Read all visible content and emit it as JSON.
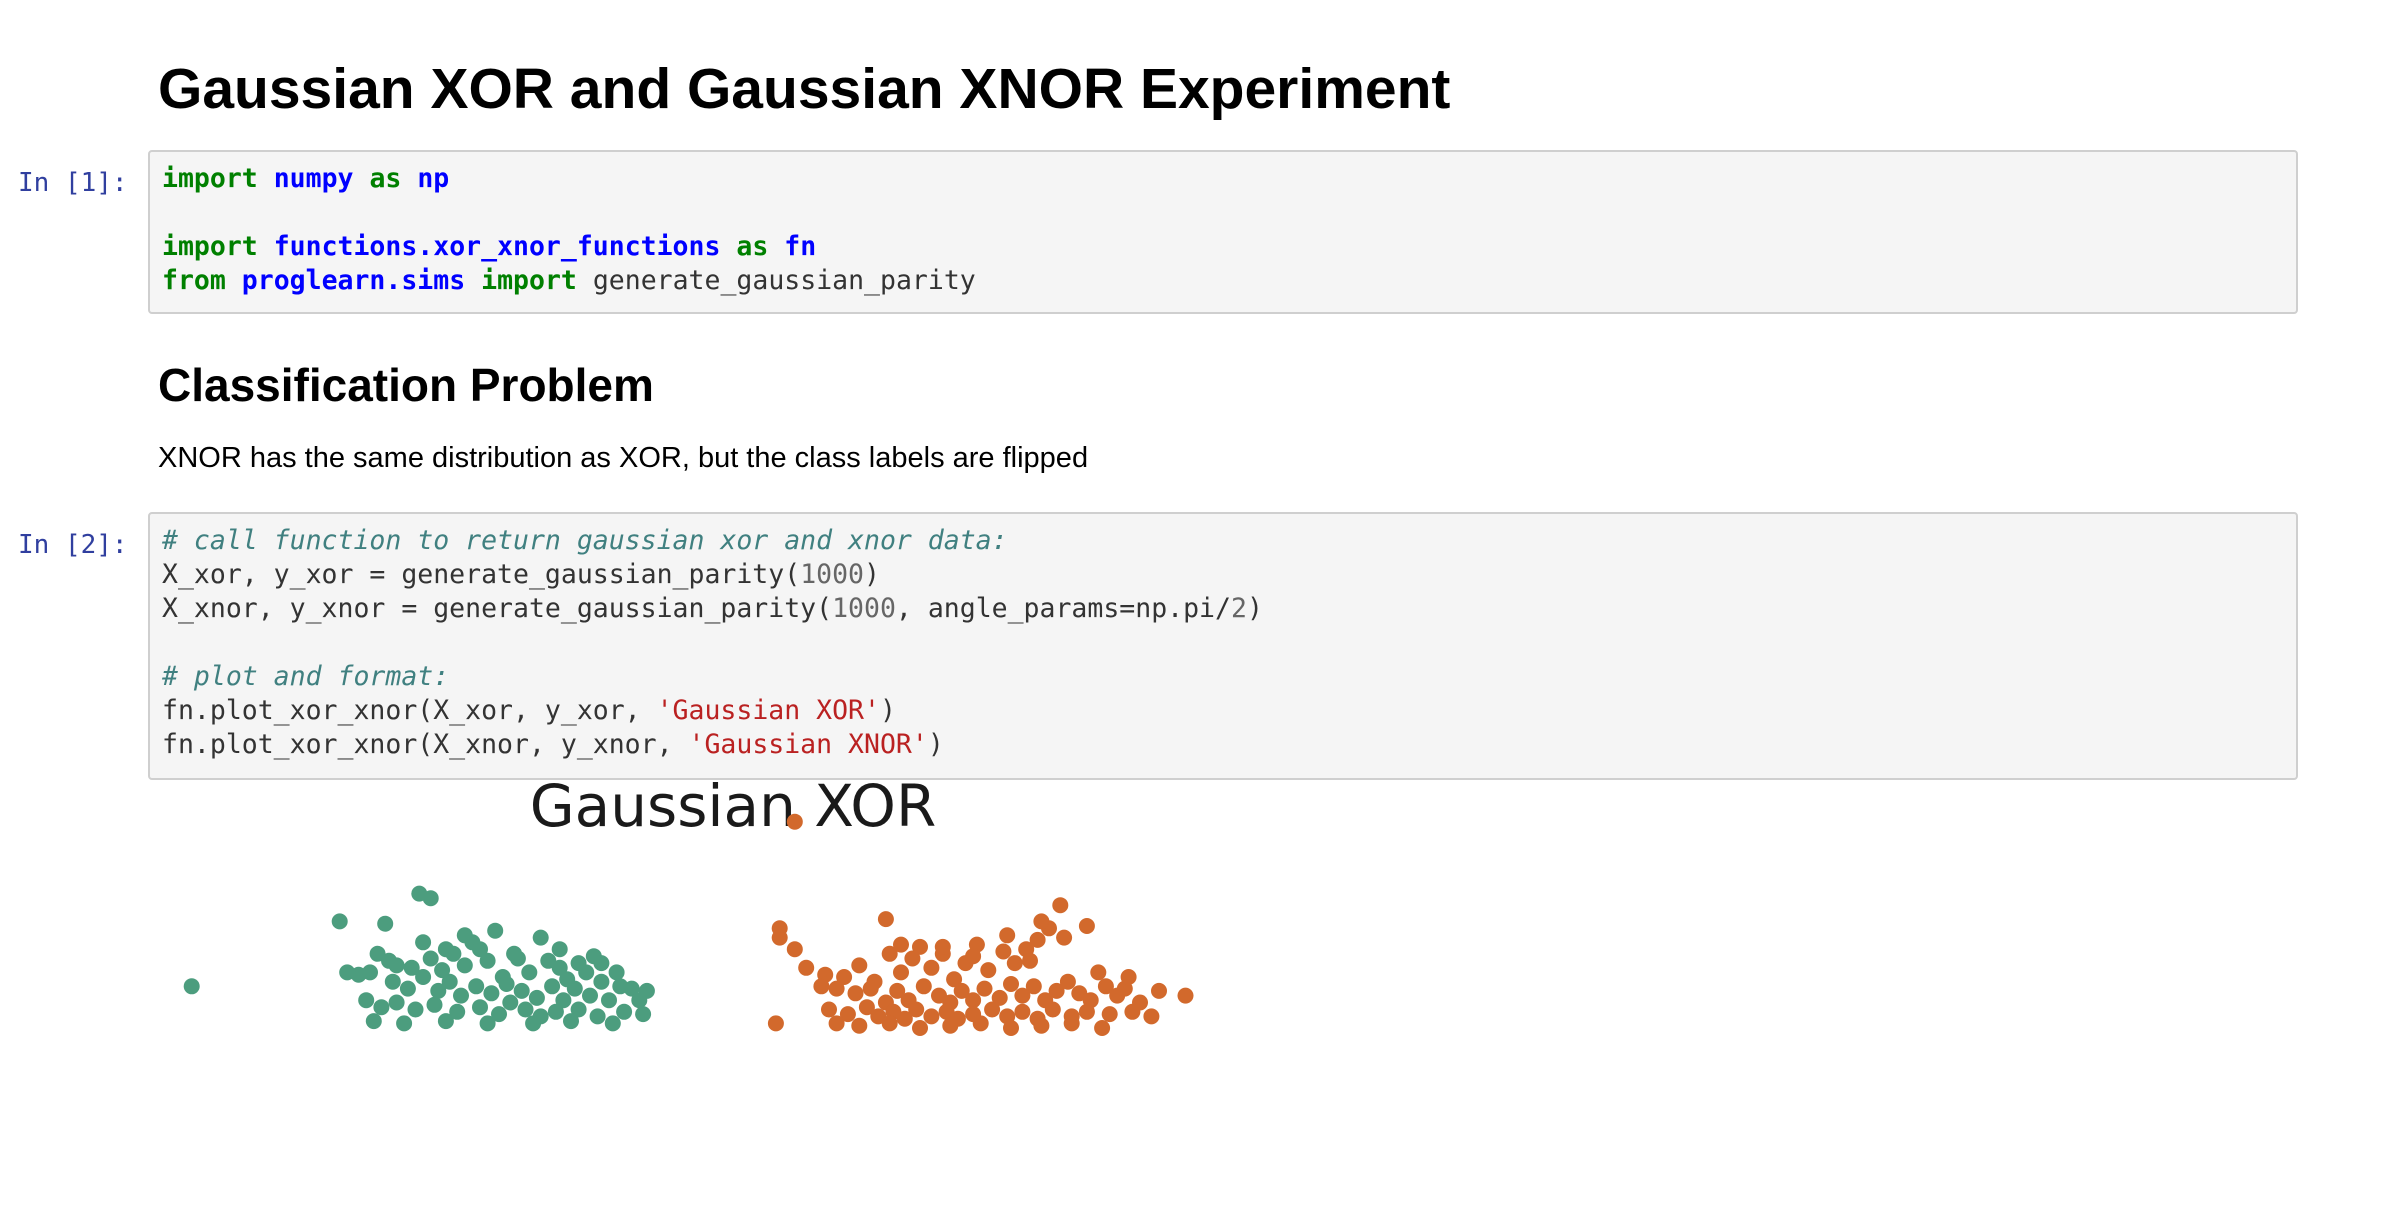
{
  "notebook": {
    "title": "Gaussian XOR and Gaussian XNOR Experiment",
    "section_heading": "Classification Problem",
    "section_text": "XNOR has the same distribution as XOR, but the class labels are flipped"
  },
  "cell1": {
    "prompt": "In [1]:",
    "lines": [
      [
        {
          "t": "import",
          "c": "kw"
        },
        {
          "t": " "
        },
        {
          "t": "numpy",
          "c": "nm"
        },
        {
          "t": " "
        },
        {
          "t": "as",
          "c": "kw"
        },
        {
          "t": " "
        },
        {
          "t": "np",
          "c": "nm"
        }
      ],
      [],
      [
        {
          "t": "import",
          "c": "kw"
        },
        {
          "t": " "
        },
        {
          "t": "functions.xor_xnor_functions",
          "c": "nm"
        },
        {
          "t": " "
        },
        {
          "t": "as",
          "c": "kw"
        },
        {
          "t": " "
        },
        {
          "t": "fn",
          "c": "nm"
        }
      ],
      [
        {
          "t": "from",
          "c": "kw"
        },
        {
          "t": " "
        },
        {
          "t": "proglearn.sims",
          "c": "nm"
        },
        {
          "t": " "
        },
        {
          "t": "import",
          "c": "kw"
        },
        {
          "t": " generate_gaussian_parity"
        }
      ]
    ]
  },
  "cell2": {
    "prompt": "In [2]:",
    "lines": [
      [
        {
          "t": "# call function to return gaussian xor and xnor data:",
          "c": "cm"
        }
      ],
      [
        {
          "t": "X_xor, y_xor = generate_gaussian_parity("
        },
        {
          "t": "1000",
          "c": "nu"
        },
        {
          "t": ")"
        }
      ],
      [
        {
          "t": "X_xnor, y_xnor = generate_gaussian_parity("
        },
        {
          "t": "1000",
          "c": "nu"
        },
        {
          "t": ", angle_params=np.pi/"
        },
        {
          "t": "2",
          "c": "nu"
        },
        {
          "t": ")"
        }
      ],
      [],
      [
        {
          "t": "# plot and format:",
          "c": "cm"
        }
      ],
      [
        {
          "t": "fn.plot_xor_xnor(X_xor, y_xor, "
        },
        {
          "t": "'Gaussian XOR'",
          "c": "st"
        },
        {
          "t": ")"
        }
      ],
      [
        {
          "t": "fn.plot_xor_xnor(X_xnor, y_xnor, "
        },
        {
          "t": "'Gaussian XNOR'",
          "c": "st"
        },
        {
          "t": ")"
        }
      ]
    ]
  },
  "chart_data": {
    "type": "scatter",
    "title": "Gaussian XOR",
    "colors": {
      "class0": "#4c9d7e",
      "class1": "#d2692c"
    },
    "xlim": [
      -0.45,
      2.45
    ],
    "ylim": [
      -1.0,
      0.95
    ],
    "series": [
      {
        "values": [
          [
            -0.34,
            0.06
          ],
          [
            0.05,
            0.34
          ],
          [
            0.26,
            0.46
          ],
          [
            0.29,
            0.44
          ],
          [
            0.17,
            0.33
          ],
          [
            0.38,
            0.28
          ],
          [
            0.51,
            0.2
          ],
          [
            0.15,
            0.2
          ],
          [
            0.18,
            0.17
          ],
          [
            0.2,
            0.15
          ],
          [
            0.24,
            0.14
          ],
          [
            0.29,
            0.18
          ],
          [
            0.32,
            0.13
          ],
          [
            0.35,
            0.2
          ],
          [
            0.38,
            0.15
          ],
          [
            0.4,
            0.25
          ],
          [
            0.42,
            0.22
          ],
          [
            0.44,
            0.17
          ],
          [
            0.48,
            0.1
          ],
          [
            0.52,
            0.18
          ],
          [
            0.55,
            0.12
          ],
          [
            0.6,
            0.17
          ],
          [
            0.63,
            0.14
          ],
          [
            0.65,
            0.09
          ],
          [
            0.68,
            0.16
          ],
          [
            0.7,
            0.12
          ],
          [
            0.72,
            0.19
          ],
          [
            0.78,
            0.12
          ],
          [
            0.82,
            0.05
          ],
          [
            0.1,
            0.11
          ],
          [
            0.13,
            0.12
          ],
          [
            0.19,
            0.08
          ],
          [
            0.23,
            0.05
          ],
          [
            0.27,
            0.1
          ],
          [
            0.31,
            0.04
          ],
          [
            0.34,
            0.08
          ],
          [
            0.37,
            0.02
          ],
          [
            0.41,
            0.06
          ],
          [
            0.45,
            0.03
          ],
          [
            0.49,
            0.07
          ],
          [
            0.5,
            -0.01
          ],
          [
            0.53,
            0.04
          ],
          [
            0.57,
            0.01
          ],
          [
            0.61,
            0.06
          ],
          [
            0.64,
            0.0
          ],
          [
            0.67,
            0.05
          ],
          [
            0.71,
            0.02
          ],
          [
            0.74,
            0.08
          ],
          [
            0.76,
            0.0
          ],
          [
            0.79,
            0.06
          ],
          [
            0.84,
            0.0
          ],
          [
            0.86,
            0.04
          ],
          [
            0.12,
            0.0
          ],
          [
            0.16,
            -0.03
          ],
          [
            0.2,
            -0.01
          ],
          [
            0.25,
            -0.04
          ],
          [
            0.3,
            -0.02
          ],
          [
            0.36,
            -0.05
          ],
          [
            0.42,
            -0.03
          ],
          [
            0.47,
            -0.06
          ],
          [
            0.54,
            -0.04
          ],
          [
            0.58,
            -0.07
          ],
          [
            0.62,
            -0.05
          ],
          [
            0.68,
            -0.04
          ],
          [
            0.73,
            -0.07
          ],
          [
            0.8,
            -0.05
          ],
          [
            0.85,
            -0.06
          ],
          [
            0.14,
            -0.09
          ],
          [
            0.22,
            -0.1
          ],
          [
            0.33,
            -0.09
          ],
          [
            0.44,
            -0.1
          ],
          [
            0.56,
            -0.1
          ],
          [
            0.66,
            -0.09
          ],
          [
            0.77,
            -0.1
          ],
          [
            0.27,
            0.25
          ],
          [
            0.46,
            0.3
          ],
          [
            0.58,
            0.27
          ],
          [
            0.07,
            0.12
          ],
          [
            0.63,
            0.22
          ],
          [
            0.74,
            0.16
          ],
          [
            0.33,
            0.22
          ]
        ]
      },
      {
        "values": [
          [
            1.25,
            0.77
          ],
          [
            1.21,
            0.31
          ],
          [
            1.49,
            0.35
          ],
          [
            1.21,
            0.27
          ],
          [
            1.25,
            0.22
          ],
          [
            1.28,
            0.14
          ],
          [
            1.33,
            0.11
          ],
          [
            1.36,
            0.05
          ],
          [
            1.42,
            0.15
          ],
          [
            1.46,
            0.08
          ],
          [
            1.5,
            0.2
          ],
          [
            1.53,
            0.12
          ],
          [
            1.56,
            0.18
          ],
          [
            1.58,
            0.23
          ],
          [
            1.61,
            0.14
          ],
          [
            1.64,
            0.2
          ],
          [
            1.67,
            0.09
          ],
          [
            1.7,
            0.16
          ],
          [
            1.73,
            0.24
          ],
          [
            1.76,
            0.13
          ],
          [
            1.8,
            0.21
          ],
          [
            1.83,
            0.16
          ],
          [
            1.86,
            0.22
          ],
          [
            1.89,
            0.26
          ],
          [
            1.92,
            0.31
          ],
          [
            1.95,
            0.41
          ],
          [
            1.9,
            0.34
          ],
          [
            1.81,
            0.28
          ],
          [
            1.96,
            0.27
          ],
          [
            2.02,
            0.32
          ],
          [
            2.05,
            0.12
          ],
          [
            2.21,
            0.04
          ],
          [
            2.28,
            0.02
          ],
          [
            1.32,
            0.06
          ],
          [
            1.38,
            0.1
          ],
          [
            1.41,
            0.03
          ],
          [
            1.45,
            0.05
          ],
          [
            1.49,
            -0.01
          ],
          [
            1.52,
            0.04
          ],
          [
            1.55,
            0.0
          ],
          [
            1.59,
            0.06
          ],
          [
            1.63,
            0.02
          ],
          [
            1.66,
            -0.01
          ],
          [
            1.69,
            0.04
          ],
          [
            1.72,
            0.0
          ],
          [
            1.75,
            0.05
          ],
          [
            1.79,
            0.01
          ],
          [
            1.82,
            0.07
          ],
          [
            1.85,
            0.02
          ],
          [
            1.88,
            0.06
          ],
          [
            1.91,
            0.0
          ],
          [
            1.94,
            0.04
          ],
          [
            1.97,
            0.08
          ],
          [
            2.0,
            0.03
          ],
          [
            2.03,
            0.0
          ],
          [
            2.07,
            0.06
          ],
          [
            2.1,
            0.02
          ],
          [
            2.12,
            0.05
          ],
          [
            2.16,
            -0.01
          ],
          [
            1.34,
            -0.04
          ],
          [
            1.39,
            -0.06
          ],
          [
            1.44,
            -0.03
          ],
          [
            1.47,
            -0.07
          ],
          [
            1.51,
            -0.05
          ],
          [
            1.54,
            -0.08
          ],
          [
            1.57,
            -0.04
          ],
          [
            1.61,
            -0.07
          ],
          [
            1.65,
            -0.05
          ],
          [
            1.68,
            -0.08
          ],
          [
            1.72,
            -0.06
          ],
          [
            1.77,
            -0.04
          ],
          [
            1.81,
            -0.07
          ],
          [
            1.85,
            -0.05
          ],
          [
            1.89,
            -0.08
          ],
          [
            1.93,
            -0.04
          ],
          [
            1.98,
            -0.07
          ],
          [
            2.02,
            -0.05
          ],
          [
            2.08,
            -0.06
          ],
          [
            2.14,
            -0.05
          ],
          [
            2.19,
            -0.07
          ],
          [
            1.36,
            -0.1
          ],
          [
            1.42,
            -0.11
          ],
          [
            1.5,
            -0.1
          ],
          [
            1.58,
            -0.12
          ],
          [
            1.66,
            -0.11
          ],
          [
            1.74,
            -0.1
          ],
          [
            1.82,
            -0.12
          ],
          [
            1.9,
            -0.11
          ],
          [
            1.98,
            -0.1
          ],
          [
            2.06,
            -0.12
          ],
          [
            1.64,
            0.23
          ],
          [
            1.72,
            0.19
          ],
          [
            1.53,
            0.24
          ],
          [
            1.87,
            0.17
          ],
          [
            2.13,
            0.1
          ],
          [
            1.2,
            -0.1
          ]
        ]
      }
    ]
  }
}
